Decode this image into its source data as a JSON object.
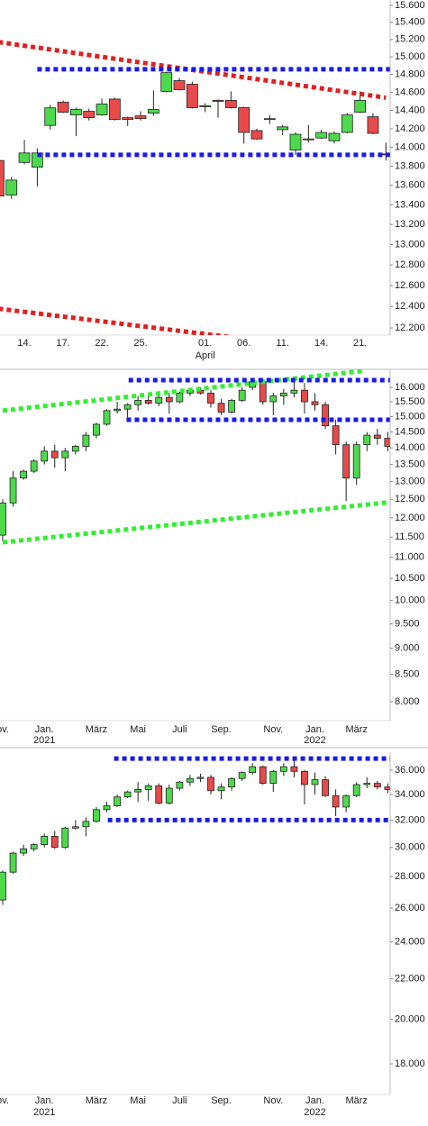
{
  "chart_data": [
    {
      "type": "candlestick",
      "log": true,
      "up_color": "#4cd94c",
      "down_color": "#e84a4a",
      "categories": [
        null,
        null,
        "14.",
        null,
        null,
        "17.",
        null,
        null,
        "22.",
        null,
        null,
        "25.",
        null,
        null,
        null,
        null,
        "01.",
        null,
        null,
        "06.",
        null,
        null,
        "11.",
        null,
        null,
        "14.",
        null,
        null,
        "21.",
        null,
        null
      ],
      "categories_line2": [
        null,
        null,
        null,
        null,
        null,
        null,
        null,
        null,
        null,
        null,
        null,
        null,
        null,
        null,
        null,
        null,
        "April",
        null,
        null,
        null,
        null,
        null,
        null,
        null,
        null,
        null,
        null,
        null,
        null,
        null,
        null
      ],
      "open": [
        13860,
        13500,
        13840,
        13790,
        14236,
        14490,
        14350,
        14390,
        14350,
        14525,
        14320,
        14340,
        14370,
        14610,
        14730,
        14690,
        14440,
        14510,
        14510,
        14430,
        14180,
        14300,
        14190,
        13970,
        14080,
        14100,
        14070,
        14160,
        14380,
        14330,
        13930
      ],
      "high": [
        13880,
        13690,
        14080,
        13990,
        14460,
        14510,
        14430,
        14420,
        14530,
        14540,
        14330,
        14390,
        14620,
        14830,
        14760,
        14720,
        14480,
        14520,
        14610,
        14440,
        14200,
        14350,
        14240,
        14160,
        14240,
        14190,
        14170,
        14370,
        14610,
        14370,
        14050
      ],
      "low": [
        13400,
        13460,
        13820,
        13590,
        14190,
        14370,
        14120,
        14290,
        14340,
        14290,
        14230,
        14290,
        14340,
        14600,
        14620,
        14420,
        14380,
        14320,
        14420,
        14040,
        14080,
        14250,
        14130,
        13920,
        14050,
        14090,
        14040,
        14150,
        14370,
        14140,
        13860
      ],
      "close": [
        13490,
        13655,
        13940,
        13940,
        14428,
        14380,
        14410,
        14320,
        14470,
        14300,
        14300,
        14310,
        14410,
        14820,
        14630,
        14430,
        14450,
        14500,
        14430,
        14160,
        14090,
        14310,
        14220,
        14140,
        14090,
        14160,
        14150,
        14350,
        14510,
        14150,
        13920
      ],
      "ylim": [
        12133,
        15664
      ],
      "yticks": [
        {
          "value": 12200,
          "label": "12.200"
        },
        {
          "value": 12400,
          "label": "12.400"
        },
        {
          "value": 12600,
          "label": "12.600"
        },
        {
          "value": 12800,
          "label": "12.800"
        },
        {
          "value": 13000,
          "label": "13.000"
        },
        {
          "value": 13200,
          "label": "13.200"
        },
        {
          "value": 13400,
          "label": "13.400"
        },
        {
          "value": 13600,
          "label": "13.600"
        },
        {
          "value": 13800,
          "label": "13.800"
        },
        {
          "value": 14000,
          "label": "14.000"
        },
        {
          "value": 14200,
          "label": "14.200"
        },
        {
          "value": 14400,
          "label": "14.400"
        },
        {
          "value": 14600,
          "label": "14.600"
        },
        {
          "value": 14800,
          "label": "14.800"
        },
        {
          "value": 15000,
          "label": "15.000"
        },
        {
          "value": 15200,
          "label": "15.200"
        },
        {
          "value": 15400,
          "label": "15.400"
        },
        {
          "value": 15600,
          "label": "15.600"
        }
      ],
      "lines": [
        {
          "color": "#e02020",
          "x": [
            0,
            30
          ],
          "y": [
            15170,
            14540
          ]
        },
        {
          "color": "#e02020",
          "x": [
            0,
            19.6
          ],
          "y": [
            12380,
            12090
          ]
        },
        {
          "color": "#1a1aee",
          "x": [
            3,
            30.3
          ],
          "y": [
            14858,
            14858
          ]
        },
        {
          "color": "#1a1aee",
          "x": [
            3,
            30.3
          ],
          "y": [
            13920,
            13920
          ]
        }
      ]
    },
    {
      "type": "candlestick",
      "log": true,
      "up_color": "#4cd94c",
      "down_color": "#e84a4a",
      "categories": [
        "ov.",
        null,
        null,
        null,
        "Jan.",
        null,
        null,
        null,
        null,
        "März",
        null,
        null,
        null,
        "Mai",
        null,
        null,
        null,
        "Juli",
        null,
        null,
        null,
        "Sep.",
        null,
        null,
        null,
        null,
        "Nov.",
        null,
        null,
        null,
        "Jan.",
        null,
        null,
        null,
        "März",
        null,
        null,
        null
      ],
      "categories_line2": [
        null,
        null,
        null,
        null,
        "2021",
        null,
        null,
        null,
        null,
        null,
        null,
        null,
        null,
        null,
        null,
        null,
        null,
        null,
        null,
        null,
        null,
        null,
        null,
        null,
        null,
        null,
        null,
        null,
        null,
        null,
        "2022",
        null,
        null,
        null,
        null,
        null,
        null,
        null
      ],
      "open": [
        11550,
        12400,
        13100,
        13300,
        13600,
        13900,
        13700,
        13900,
        14050,
        14400,
        14750,
        15200,
        15250,
        15400,
        15550,
        15450,
        15650,
        15500,
        15800,
        15900,
        15800,
        15450,
        15150,
        15550,
        16000,
        16200,
        15500,
        15700,
        15800,
        15900,
        15500,
        15400,
        14700,
        14100,
        13100,
        14100,
        14400,
        14300
      ],
      "high": [
        12500,
        13300,
        13350,
        13650,
        14050,
        14100,
        14000,
        14100,
        14500,
        14800,
        15250,
        15500,
        15450,
        15700,
        15700,
        15800,
        15800,
        15850,
        15950,
        16000,
        15900,
        15600,
        15600,
        16000,
        16300,
        16300,
        15800,
        15950,
        16300,
        16150,
        15800,
        15500,
        14900,
        14200,
        14200,
        14500,
        14600,
        14500
      ],
      "low": [
        11400,
        12300,
        13050,
        13250,
        13500,
        13400,
        13300,
        13800,
        13900,
        14300,
        14700,
        15100,
        14900,
        15200,
        15400,
        15350,
        15100,
        15450,
        15700,
        15750,
        15300,
        15050,
        15100,
        15500,
        15900,
        15400,
        15050,
        15400,
        15650,
        15100,
        15200,
        14600,
        13800,
        12450,
        12900,
        13900,
        14100,
        13900
      ],
      "close": [
        12400,
        13100,
        13300,
        13600,
        13900,
        13700,
        13900,
        14050,
        14400,
        14750,
        15200,
        15250,
        15400,
        15550,
        15450,
        15650,
        15500,
        15800,
        15900,
        15800,
        15450,
        15150,
        15550,
        15900,
        16200,
        15500,
        15700,
        15800,
        15900,
        15500,
        15400,
        14700,
        14100,
        13100,
        14100,
        14400,
        14300,
        14050
      ],
      "ylim": [
        7673,
        16649
      ],
      "yticks": [
        {
          "value": 8000,
          "label": "8.000"
        },
        {
          "value": 8500,
          "label": "8.500"
        },
        {
          "value": 9000,
          "label": "9.000"
        },
        {
          "value": 9500,
          "label": "9.500"
        },
        {
          "value": 10000,
          "label": "10.000"
        },
        {
          "value": 10500,
          "label": "10.500"
        },
        {
          "value": 11000,
          "label": "11.000"
        },
        {
          "value": 11500,
          "label": "11.500"
        },
        {
          "value": 12000,
          "label": "12.000"
        },
        {
          "value": 12500,
          "label": "12.500"
        },
        {
          "value": 13000,
          "label": "13.000"
        },
        {
          "value": 13500,
          "label": "13.500"
        },
        {
          "value": 14000,
          "label": "14.000"
        },
        {
          "value": 14500,
          "label": "14.500"
        },
        {
          "value": 15000,
          "label": "15.000"
        },
        {
          "value": 15500,
          "label": "15.500"
        },
        {
          "value": 16000,
          "label": "16.000"
        }
      ],
      "lines": [
        {
          "color": "#33ee33",
          "x": [
            0,
            34.8
          ],
          "y": [
            15200,
            16600
          ]
        },
        {
          "color": "#33ee33",
          "x": [
            0,
            37.2
          ],
          "y": [
            11370,
            12420
          ]
        },
        {
          "color": "#1a1aee",
          "x": [
            12.1,
            37.2
          ],
          "y": [
            16256,
            16256
          ]
        },
        {
          "color": "#1a1aee",
          "x": [
            11.9,
            37.2
          ],
          "y": [
            14895,
            14895
          ]
        }
      ]
    },
    {
      "type": "candlestick",
      "log": true,
      "up_color": "#4cd94c",
      "down_color": "#e84a4a",
      "categories": [
        "ov.",
        null,
        null,
        null,
        "Jan.",
        null,
        null,
        null,
        null,
        "März",
        null,
        null,
        null,
        "Mai",
        null,
        null,
        null,
        "Juli",
        null,
        null,
        null,
        "Sep.",
        null,
        null,
        null,
        null,
        "Nov.",
        null,
        null,
        null,
        "Jan.",
        null,
        null,
        null,
        "März",
        null,
        null,
        null
      ],
      "categories_line2": [
        null,
        null,
        null,
        null,
        "2021",
        null,
        null,
        null,
        null,
        null,
        null,
        null,
        null,
        null,
        null,
        null,
        null,
        null,
        null,
        null,
        null,
        null,
        null,
        null,
        null,
        null,
        null,
        null,
        null,
        null,
        "2022",
        null,
        null,
        null,
        null,
        null,
        null,
        null
      ],
      "open": [
        26500,
        28300,
        29600,
        29900,
        30200,
        30800,
        30000,
        31400,
        31500,
        31900,
        32800,
        33100,
        33800,
        34200,
        34400,
        34700,
        33300,
        34500,
        35000,
        35300,
        35400,
        34300,
        34600,
        35300,
        35800,
        36300,
        34900,
        35900,
        36300,
        35900,
        34800,
        35200,
        33900,
        33000,
        33900,
        34800,
        34900,
        34600
      ],
      "high": [
        28400,
        29700,
        30200,
        30300,
        31000,
        31200,
        31500,
        32000,
        32200,
        33000,
        33400,
        34000,
        34300,
        35000,
        34900,
        34900,
        34800,
        35100,
        35600,
        35700,
        35600,
        34900,
        35400,
        35900,
        36600,
        36400,
        36000,
        36600,
        36900,
        36000,
        35800,
        35500,
        34400,
        34000,
        35000,
        35400,
        35100,
        34900
      ],
      "low": [
        26200,
        28200,
        29400,
        29700,
        30000,
        29900,
        29900,
        31300,
        30800,
        31800,
        32600,
        33000,
        33700,
        33400,
        33500,
        33200,
        33200,
        34300,
        34700,
        35000,
        34000,
        33600,
        34300,
        35100,
        35600,
        34800,
        34200,
        35500,
        35400,
        33200,
        34000,
        33800,
        32300,
        32600,
        33800,
        34500,
        34400,
        34100
      ],
      "close": [
        28300,
        29600,
        29900,
        30200,
        30800,
        30000,
        31400,
        31500,
        31900,
        32800,
        33100,
        33800,
        34200,
        34400,
        34700,
        33300,
        34500,
        35000,
        35300,
        35400,
        34300,
        34600,
        35300,
        35800,
        36300,
        34900,
        35900,
        36300,
        35900,
        34800,
        35200,
        33900,
        33000,
        33900,
        34800,
        34900,
        34600,
        34400
      ],
      "ylim": [
        16744,
        37565
      ],
      "yticks": [
        {
          "value": 18000,
          "label": "18.000"
        },
        {
          "value": 20000,
          "label": "20.000"
        },
        {
          "value": 22000,
          "label": "22.000"
        },
        {
          "value": 24000,
          "label": "24.000"
        },
        {
          "value": 26000,
          "label": "26.000"
        },
        {
          "value": 28000,
          "label": "28.000"
        },
        {
          "value": 30000,
          "label": "30.000"
        },
        {
          "value": 32000,
          "label": "32.000"
        },
        {
          "value": 34000,
          "label": "34.000"
        },
        {
          "value": 36000,
          "label": "36.000"
        }
      ],
      "lines": [
        {
          "color": "#1a1aee",
          "x": [
            10.7,
            37.9
          ],
          "y": [
            37000,
            37000
          ]
        },
        {
          "color": "#1a1aee",
          "x": [
            10.1,
            37.9
          ],
          "y": [
            32000,
            32000
          ]
        }
      ]
    }
  ]
}
